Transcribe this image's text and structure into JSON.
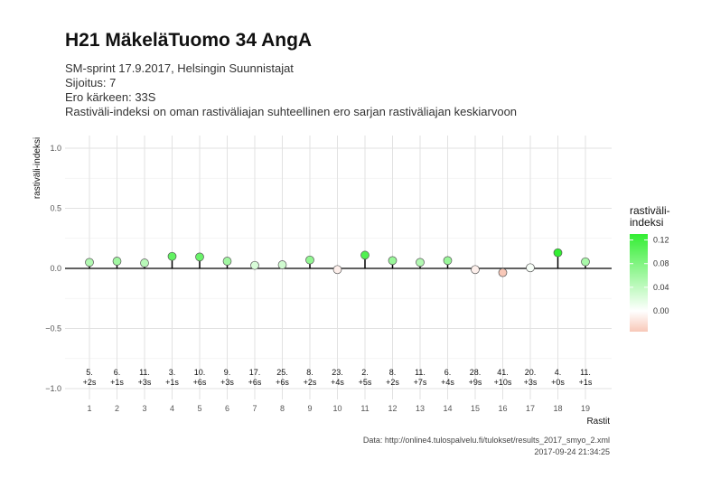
{
  "header": {
    "title": "H21 MäkeläTuomo 34 AngA",
    "subtitle_lines": [
      "SM-sprint 17.9.2017, Helsingin Suunnistajat",
      "Sijoitus: 7",
      "Ero kärkeen: 33S",
      "Rastiväli-indeksi on oman rastiväliajan suhteellinen ero sarjan rastiväliajan keskiarvoon"
    ]
  },
  "caption": {
    "source": "Data: http://online4.tulospalvelu.fi/tulokset/results_2017_smyo_2.xml",
    "timestamp": "2017-09-24 21:34:25"
  },
  "chart_data": {
    "type": "scatter",
    "xlabel": "Rastit",
    "ylabel": "rastiväli-indeksi",
    "ylim": [
      -1.05,
      1.1
    ],
    "y_ticks": [
      -1.0,
      -0.5,
      0.0,
      0.5,
      1.0
    ],
    "y_tick_labels": [
      "−1.0",
      "−0.5",
      "0.0",
      "0.5",
      "1.0"
    ],
    "x": [
      1,
      2,
      3,
      4,
      5,
      6,
      7,
      8,
      9,
      10,
      11,
      12,
      13,
      14,
      15,
      16,
      17,
      18,
      19
    ],
    "values": [
      0.05,
      0.06,
      0.045,
      0.1,
      0.095,
      0.06,
      0.025,
      0.03,
      0.07,
      -0.01,
      0.11,
      0.065,
      0.05,
      0.065,
      -0.01,
      -0.035,
      0.005,
      0.13,
      0.055
    ],
    "rank_labels": [
      "5.",
      "6.",
      "11.",
      "3.",
      "10.",
      "9.",
      "17.",
      "25.",
      "8.",
      "23.",
      "2.",
      "8.",
      "11.",
      "6.",
      "28.",
      "41.",
      "20.",
      "4.",
      "11."
    ],
    "diff_labels": [
      "+2s",
      "+1s",
      "+3s",
      "+1s",
      "+6s",
      "+3s",
      "+6s",
      "+6s",
      "+2s",
      "+4s",
      "+5s",
      "+2s",
      "+7s",
      "+4s",
      "+9s",
      "+10s",
      "+3s",
      "+0s",
      "+1s"
    ],
    "grid": true,
    "legend": {
      "title_line1": "rastiväli-",
      "title_line2": "indeksi",
      "ticks": [
        0.12,
        0.08,
        0.04,
        0.0
      ],
      "tick_labels": [
        "0.12",
        "0.08",
        "0.04",
        "0.00"
      ],
      "range": [
        -0.035,
        0.13
      ],
      "placement": "right",
      "colors": {
        "low": "#f8c8b8",
        "mid": "#ffffff",
        "high": "#33ee33"
      }
    }
  }
}
